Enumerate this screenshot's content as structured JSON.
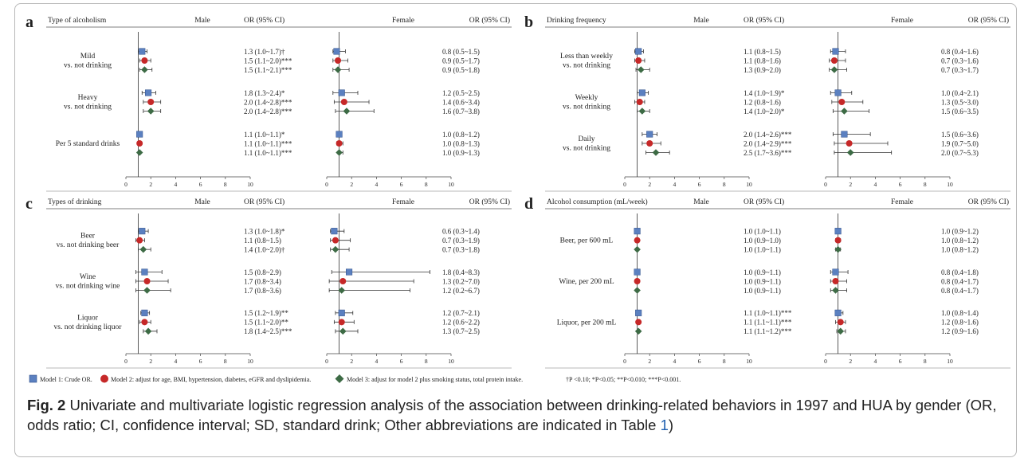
{
  "caption": {
    "label": "Fig. 2",
    "text_1": " Univariate and multivariate logistic regression analysis of the association between drinking-related behaviors in 1997 and HUA by gender (OR, odds ratio; CI, confidence interval; SD, standard drink; Other abbreviations are indicated in Table ",
    "table_ref": "1",
    "text_2": ")"
  },
  "legend": {
    "model1": "Model 1: Crude OR.",
    "model2": "Model 2: adjust for age, BMI, hypertension, diabetes, eGFR and dyslipidemia.",
    "model3": "Model 3: adjust for model 2 plus smoking status, total protein intake.",
    "significance": "†P <0.10; *P<0.05; **P<0.010; ***P<0.001."
  },
  "colors": {
    "model1": "#5b80c0",
    "model2": "#c62828",
    "model3": "#3d6b45",
    "ref_line": "#333333"
  },
  "chart_data": [
    {
      "type": "forest",
      "panel": "a",
      "header": "Type of alcoholism",
      "male_label": "Male",
      "female_label": "Female",
      "or_label": "OR (95% CI)",
      "ticks": [
        0,
        2,
        4,
        6,
        8,
        10
      ],
      "xlim": [
        0,
        10
      ],
      "groups": [
        {
          "label": [
            "Mild",
            "vs. not drinking"
          ],
          "rows": [
            {
              "male": [
                1.3,
                1.0,
                1.7
              ],
              "male_text": "1.3 (1.0~1.7)†",
              "female": [
                0.8,
                0.5,
                1.5
              ],
              "female_text": "0.8 (0.5~1.5)"
            },
            {
              "male": [
                1.5,
                1.1,
                2.0
              ],
              "male_text": "1.5 (1.1~2.0)***",
              "female": [
                0.9,
                0.5,
                1.7
              ],
              "female_text": "0.9 (0.5~1.7)"
            },
            {
              "male": [
                1.5,
                1.1,
                2.1
              ],
              "male_text": "1.5 (1.1~2.1)***",
              "female": [
                0.9,
                0.5,
                1.8
              ],
              "female_text": "0.9 (0.5~1.8)"
            }
          ]
        },
        {
          "label": [
            "Heavy",
            "vs. not drinking"
          ],
          "rows": [
            {
              "male": [
                1.8,
                1.3,
                2.4
              ],
              "male_text": "1.8 (1.3~2.4)*",
              "female": [
                1.2,
                0.5,
                2.5
              ],
              "female_text": "1.2 (0.5~2.5)"
            },
            {
              "male": [
                2.0,
                1.4,
                2.8
              ],
              "male_text": "2.0 (1.4~2.8)***",
              "female": [
                1.4,
                0.6,
                3.4
              ],
              "female_text": "1.4 (0.6~3.4)"
            },
            {
              "male": [
                2.0,
                1.4,
                2.8
              ],
              "male_text": "2.0 (1.4~2.8)***",
              "female": [
                1.6,
                0.7,
                3.8
              ],
              "female_text": "1.6 (0.7~3.8)"
            }
          ]
        },
        {
          "label": [
            "Per 5 standard drinks"
          ],
          "rows": [
            {
              "male": [
                1.1,
                1.0,
                1.1
              ],
              "male_text": "1.1 (1.0~1.1)*",
              "female": [
                1.0,
                0.8,
                1.2
              ],
              "female_text": "1.0 (0.8~1.2)"
            },
            {
              "male": [
                1.1,
                1.0,
                1.1
              ],
              "male_text": "1.1 (1.0~1.1)***",
              "female": [
                1.0,
                0.8,
                1.3
              ],
              "female_text": "1.0 (0.8~1.3)"
            },
            {
              "male": [
                1.1,
                1.0,
                1.1
              ],
              "male_text": "1.1 (1.0~1.1)***",
              "female": [
                1.0,
                0.9,
                1.3
              ],
              "female_text": "1.0 (0.9~1.3)"
            }
          ]
        }
      ]
    },
    {
      "type": "forest",
      "panel": "b",
      "header": "Drinking frequency",
      "male_label": "Male",
      "female_label": "Female",
      "or_label": "OR (95% CI)",
      "ticks": [
        0,
        2,
        4,
        6,
        8,
        10
      ],
      "xlim": [
        0,
        10
      ],
      "groups": [
        {
          "label": [
            "Less than weekly",
            "vs. not drinking"
          ],
          "rows": [
            {
              "male": [
                1.1,
                0.8,
                1.5
              ],
              "male_text": "1.1 (0.8~1.5)",
              "female": [
                0.8,
                0.4,
                1.6
              ],
              "female_text": "0.8 (0.4~1.6)"
            },
            {
              "male": [
                1.1,
                0.8,
                1.6
              ],
              "male_text": "1.1 (0.8~1.6)",
              "female": [
                0.7,
                0.3,
                1.6
              ],
              "female_text": "0.7 (0.3~1.6)"
            },
            {
              "male": [
                1.3,
                0.9,
                2.0
              ],
              "male_text": "1.3 (0.9~2.0)",
              "female": [
                0.7,
                0.3,
                1.7
              ],
              "female_text": "0.7 (0.3~1.7)"
            }
          ]
        },
        {
          "label": [
            "Weekly",
            "vs. not drinking"
          ],
          "rows": [
            {
              "male": [
                1.4,
                1.0,
                1.9
              ],
              "male_text": "1.4 (1.0~1.9)*",
              "female": [
                1.0,
                0.4,
                2.1
              ],
              "female_text": "1.0 (0.4~2.1)"
            },
            {
              "male": [
                1.2,
                0.8,
                1.6
              ],
              "male_text": "1.2 (0.8~1.6)",
              "female": [
                1.3,
                0.5,
                3.0
              ],
              "female_text": "1.3 (0.5~3.0)"
            },
            {
              "male": [
                1.4,
                1.0,
                2.0
              ],
              "male_text": "1.4 (1.0~2.0)*",
              "female": [
                1.5,
                0.6,
                3.5
              ],
              "female_text": "1.5 (0.6~3.5)"
            }
          ]
        },
        {
          "label": [
            "Daily",
            "vs. not drinking"
          ],
          "rows": [
            {
              "male": [
                2.0,
                1.4,
                2.6
              ],
              "male_text": "2.0 (1.4~2.6)***",
              "female": [
                1.5,
                0.6,
                3.6
              ],
              "female_text": "1.5 (0.6~3.6)"
            },
            {
              "male": [
                2.0,
                1.4,
                2.9
              ],
              "male_text": "2.0 (1.4~2.9)***",
              "female": [
                1.9,
                0.7,
                5.0
              ],
              "female_text": "1.9 (0.7~5.0)"
            },
            {
              "male": [
                2.5,
                1.7,
                3.6
              ],
              "male_text": "2.5 (1.7~3.6)***",
              "female": [
                2.0,
                0.7,
                5.3
              ],
              "female_text": "2.0 (0.7~5.3)"
            }
          ]
        }
      ]
    },
    {
      "type": "forest",
      "panel": "c",
      "header": "Types of drinking",
      "male_label": "Male",
      "female_label": "Female",
      "or_label": "OR (95% CI)",
      "ticks": [
        0,
        2,
        4,
        6,
        8,
        10
      ],
      "xlim": [
        0,
        10
      ],
      "groups": [
        {
          "label": [
            "Beer",
            "vs. not drinking beer"
          ],
          "rows": [
            {
              "male": [
                1.3,
                1.0,
                1.8
              ],
              "male_text": "1.3 (1.0~1.8)*",
              "female": [
                0.6,
                0.3,
                1.4
              ],
              "female_text": "0.6 (0.3~1.4)"
            },
            {
              "male": [
                1.1,
                0.8,
                1.5
              ],
              "male_text": "1.1 (0.8~1.5)",
              "female": [
                0.7,
                0.3,
                1.9
              ],
              "female_text": "0.7 (0.3~1.9)"
            },
            {
              "male": [
                1.4,
                1.0,
                2.0
              ],
              "male_text": "1.4 (1.0~2.0)†",
              "female": [
                0.7,
                0.3,
                1.8
              ],
              "female_text": "0.7 (0.3~1.8)"
            }
          ]
        },
        {
          "label": [
            "Wine",
            "vs. not drinking wine"
          ],
          "rows": [
            {
              "male": [
                1.5,
                0.8,
                2.9
              ],
              "male_text": "1.5 (0.8~2.9)",
              "female": [
                1.8,
                0.4,
                8.3
              ],
              "female_text": "1.8 (0.4~8.3)"
            },
            {
              "male": [
                1.7,
                0.8,
                3.4
              ],
              "male_text": "1.7 (0.8~3.4)",
              "female": [
                1.3,
                0.2,
                7.0
              ],
              "female_text": "1.3 (0.2~7.0)"
            },
            {
              "male": [
                1.7,
                0.8,
                3.6
              ],
              "male_text": "1.7 (0.8~3.6)",
              "female": [
                1.2,
                0.2,
                6.7
              ],
              "female_text": "1.2 (0.2~6.7)"
            }
          ]
        },
        {
          "label": [
            "Liquor",
            "vs. not drinking liquor"
          ],
          "rows": [
            {
              "male": [
                1.5,
                1.2,
                1.9
              ],
              "male_text": "1.5 (1.2~1.9)**",
              "female": [
                1.2,
                0.7,
                2.1
              ],
              "female_text": "1.2 (0.7~2.1)"
            },
            {
              "male": [
                1.5,
                1.1,
                2.0
              ],
              "male_text": "1.5 (1.1~2.0)**",
              "female": [
                1.2,
                0.6,
                2.2
              ],
              "female_text": "1.2 (0.6~2.2)"
            },
            {
              "male": [
                1.8,
                1.4,
                2.5
              ],
              "male_text": "1.8 (1.4~2.5)***",
              "female": [
                1.3,
                0.7,
                2.5
              ],
              "female_text": "1.3 (0.7~2.5)"
            }
          ]
        }
      ]
    },
    {
      "type": "forest",
      "panel": "d",
      "header": "Alcohol consumption  (mL/week)",
      "male_label": "Male",
      "female_label": "Female",
      "or_label": "OR (95% CI)",
      "ticks": [
        0,
        2,
        4,
        6,
        8,
        10
      ],
      "xlim": [
        0,
        10
      ],
      "groups": [
        {
          "label": [
            "Beer, per 600 mL"
          ],
          "rows": [
            {
              "male": [
                1.0,
                1.0,
                1.1
              ],
              "male_text": "1.0 (1.0~1.1)",
              "female": [
                1.0,
                0.9,
                1.2
              ],
              "female_text": "1.0 (0.9~1.2)"
            },
            {
              "male": [
                1.0,
                0.9,
                1.0
              ],
              "male_text": "1.0 (0.9~1.0)",
              "female": [
                1.0,
                0.8,
                1.2
              ],
              "female_text": "1.0 (0.8~1.2)"
            },
            {
              "male": [
                1.0,
                1.0,
                1.1
              ],
              "male_text": "1.0 (1.0~1.1)",
              "female": [
                1.0,
                0.8,
                1.2
              ],
              "female_text": "1.0 (0.8~1.2)"
            }
          ]
        },
        {
          "label": [
            "Wine, per 200 mL"
          ],
          "rows": [
            {
              "male": [
                1.0,
                0.9,
                1.1
              ],
              "male_text": "1.0 (0.9~1.1)",
              "female": [
                0.8,
                0.4,
                1.8
              ],
              "female_text": "0.8 (0.4~1.8)"
            },
            {
              "male": [
                1.0,
                0.9,
                1.1
              ],
              "male_text": "1.0 (0.9~1.1)",
              "female": [
                0.8,
                0.4,
                1.7
              ],
              "female_text": "0.8 (0.4~1.7)"
            },
            {
              "male": [
                1.0,
                0.9,
                1.1
              ],
              "male_text": "1.0 (0.9~1.1)",
              "female": [
                0.8,
                0.4,
                1.7
              ],
              "female_text": "0.8 (0.4~1.7)"
            }
          ]
        },
        {
          "label": [
            "Liquor, per 200 mL"
          ],
          "rows": [
            {
              "male": [
                1.1,
                1.0,
                1.1
              ],
              "male_text": "1.1 (1.0~1.1)***",
              "female": [
                1.0,
                0.8,
                1.4
              ],
              "female_text": "1.0 (0.8~1.4)"
            },
            {
              "male": [
                1.1,
                1.1,
                1.1
              ],
              "male_text": "1.1 (1.1~1.1)***",
              "female": [
                1.2,
                0.8,
                1.6
              ],
              "female_text": "1.2 (0.8~1.6)"
            },
            {
              "male": [
                1.1,
                1.1,
                1.2
              ],
              "male_text": "1.1 (1.1~1.2)***",
              "female": [
                1.2,
                0.9,
                1.6
              ],
              "female_text": "1.2 (0.9~1.6)"
            }
          ]
        }
      ]
    }
  ]
}
